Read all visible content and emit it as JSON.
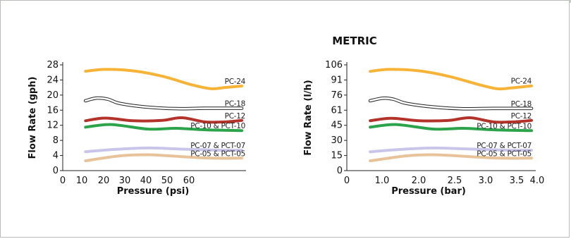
{
  "metric_title": "METRIC",
  "colors": {
    "pc24": "#f6b335",
    "pc18": "#222222",
    "pc12": "#b3322a",
    "pc10": "#2aa34a",
    "pc07": "#c9c4ea",
    "pc05": "#e8c39a"
  },
  "chart_data": [
    {
      "type": "line",
      "xlabel": "Pressure (psi)",
      "ylabel": "Flow Rate (gph)",
      "xlim": [
        0,
        63
      ],
      "ylim": [
        0,
        28
      ],
      "xticks": [
        "0",
        "10",
        "20",
        "30",
        "40",
        "50",
        "60"
      ],
      "yticks": [
        "0",
        "4",
        "8",
        "12",
        "16",
        "20",
        "24",
        "28"
      ],
      "series": [
        {
          "name": "PC-24",
          "x": [
            8,
            15,
            25,
            35,
            45,
            52,
            57,
            63
          ],
          "y": [
            26.3,
            26.8,
            26.4,
            25.0,
            22.8,
            21.7,
            22.0,
            22.4
          ]
        },
        {
          "name": "PC-18",
          "x": [
            8,
            12,
            16,
            20,
            30,
            40,
            50,
            63
          ],
          "y": [
            18.5,
            19.2,
            18.9,
            17.8,
            16.8,
            16.4,
            16.5,
            16.5
          ]
        },
        {
          "name": "PC-12",
          "x": [
            8,
            15,
            25,
            35,
            42,
            50,
            57,
            63
          ],
          "y": [
            13.2,
            13.9,
            13.2,
            13.3,
            14.0,
            12.9,
            12.9,
            13.3
          ]
        },
        {
          "name": "PC-10 & PCT-10",
          "x": [
            8,
            17,
            30,
            40,
            50,
            63
          ],
          "y": [
            11.5,
            12.2,
            11.0,
            11.2,
            10.8,
            10.6
          ]
        },
        {
          "name": "PC-07 & PCT-07",
          "x": [
            8,
            18,
            30,
            42,
            55,
            63
          ],
          "y": [
            5.0,
            5.6,
            6.0,
            5.7,
            5.4,
            5.4
          ]
        },
        {
          "name": "PC-05 & PCT-05",
          "x": [
            8,
            20,
            30,
            42,
            52,
            63
          ],
          "y": [
            2.6,
            3.9,
            4.2,
            3.7,
            3.3,
            3.3
          ]
        }
      ]
    },
    {
      "type": "line",
      "xlabel": "Pressure (bar)",
      "ylabel": "Flow Rate (l/h)",
      "xlim": [
        0,
        4.35
      ],
      "ylim": [
        0,
        106
      ],
      "xticks": [
        "0",
        "1.0",
        "2.0",
        "2.5",
        "3.0",
        "3.5",
        "4.0"
      ],
      "yticks": [
        "0",
        "15",
        "30",
        "45",
        "61",
        "76",
        "91",
        "106"
      ],
      "series": [
        {
          "name": "PC-24",
          "x": [
            0.55,
            1.0,
            1.7,
            2.4,
            3.1,
            3.55,
            3.9,
            4.35
          ],
          "y": [
            99.5,
            101.5,
            100.0,
            94.5,
            86.3,
            82.0,
            83.0,
            85.0
          ]
        },
        {
          "name": "PC-18",
          "x": [
            0.55,
            0.85,
            1.1,
            1.4,
            2.1,
            2.75,
            3.45,
            4.35
          ],
          "y": [
            70.0,
            72.6,
            71.5,
            67.4,
            63.5,
            62.0,
            62.3,
            62.3
          ]
        },
        {
          "name": "PC-12",
          "x": [
            0.55,
            1.05,
            1.7,
            2.4,
            2.9,
            3.45,
            3.9,
            4.35
          ],
          "y": [
            50.0,
            52.5,
            50.0,
            50.3,
            53.0,
            48.8,
            48.8,
            50.3
          ]
        },
        {
          "name": "PC-10 & PCT-10",
          "x": [
            0.55,
            1.15,
            2.05,
            2.75,
            3.45,
            4.35
          ],
          "y": [
            43.5,
            46.2,
            41.6,
            42.4,
            40.9,
            40.1
          ]
        },
        {
          "name": "PC-07 & PCT-07",
          "x": [
            0.55,
            1.25,
            2.05,
            2.9,
            3.8,
            4.35
          ],
          "y": [
            18.9,
            21.2,
            22.7,
            21.6,
            20.4,
            20.4
          ]
        },
        {
          "name": "PC-05 & PCT-05",
          "x": [
            0.55,
            1.4,
            2.05,
            2.9,
            3.6,
            4.35
          ],
          "y": [
            9.8,
            14.8,
            15.9,
            14.0,
            12.5,
            12.5
          ]
        }
      ]
    }
  ]
}
